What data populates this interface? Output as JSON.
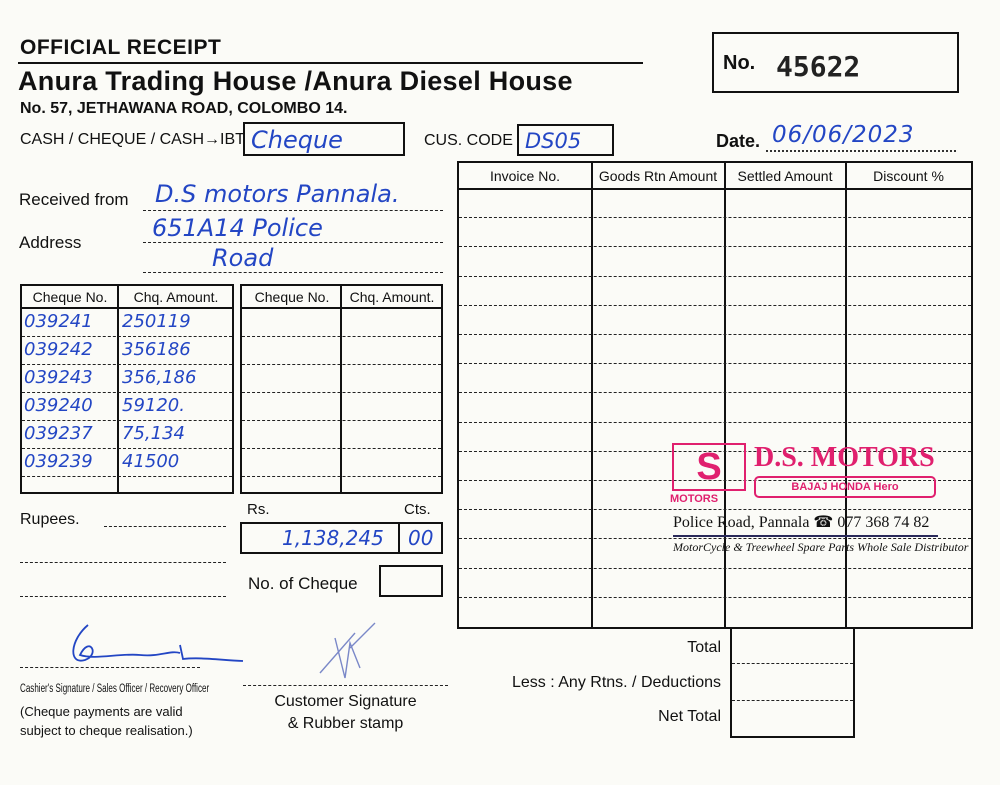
{
  "header": {
    "receipt_title": "OFFICIAL RECEIPT",
    "company": "Anura Trading House /Anura Diesel House",
    "address": "No. 57, JETHAWANA ROAD, COLOMBO 14.",
    "no_label": "No.",
    "receipt_no": "45622"
  },
  "payment": {
    "method_label": "CASH / CHEQUE / CASH→IBT",
    "method_value": "Cheque",
    "cus_code_label": "CUS. CODE",
    "cus_code_value": "DS05",
    "date_label": "Date.",
    "date_value": "06/06/2023"
  },
  "customer": {
    "received_from_label": "Received from",
    "received_from_value": "D.S motors  Pannala.",
    "address_label": "Address",
    "address_line1": "651A14 Police",
    "address_line2": "Road"
  },
  "cheque_table_left": {
    "headers": [
      "Cheque No.",
      "Chq. Amount."
    ],
    "rows": [
      [
        "039241",
        "250119"
      ],
      [
        "039242",
        "356186"
      ],
      [
        "039243",
        "356,186"
      ],
      [
        "039240",
        "59120."
      ],
      [
        "039237",
        "75,134"
      ],
      [
        "039239",
        "41500"
      ]
    ]
  },
  "cheque_table_right": {
    "headers": [
      "Cheque No.",
      "Chq. Amount."
    ]
  },
  "invoice_table": {
    "headers": [
      "Invoice No.",
      "Goods Rtn Amount",
      "Settled Amount",
      "Discount %"
    ]
  },
  "amount": {
    "rupees_label": "Rupees.",
    "rs_label": "Rs.",
    "cts_label": "Cts.",
    "rs_value": "1,138,245",
    "cts_value": "00",
    "no_of_cheque_label": "No. of Cheque"
  },
  "totals": {
    "total_label": "Total",
    "less_label": "Less : Any Rtns. / Deductions",
    "net_label": "Net Total"
  },
  "signatures": {
    "cashier_label": "Cashier's Signature / Sales Officer / Recovery Officer",
    "cheque_note": "(Cheque payments are valid subject to cheque realisation.)",
    "customer_label_1": "Customer  Signature",
    "customer_label_2": "& Rubber stamp"
  },
  "stamp": {
    "name": "D.S. MOTORS",
    "logo_text": "MOTORS",
    "brands": "BAJAJ  HONDA  Hero",
    "address": "Police Road, Pannala ☎ 077 368 74 82",
    "tagline": "MotorCycle & Treewheel Spare Parts Whole Sale Distributor",
    "color": "#e0206e"
  }
}
